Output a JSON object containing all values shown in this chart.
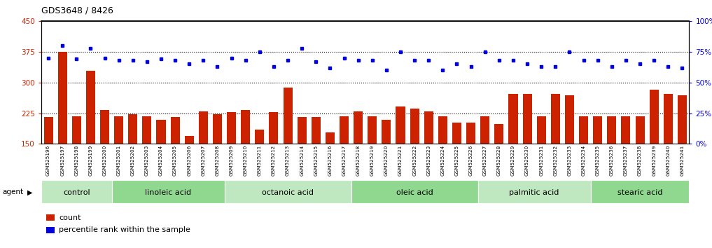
{
  "title": "GDS3648 / 8426",
  "samples": [
    "GSM525196",
    "GSM525197",
    "GSM525198",
    "GSM525199",
    "GSM525200",
    "GSM525201",
    "GSM525202",
    "GSM525203",
    "GSM525204",
    "GSM525205",
    "GSM525206",
    "GSM525207",
    "GSM525208",
    "GSM525209",
    "GSM525210",
    "GSM525211",
    "GSM525212",
    "GSM525213",
    "GSM525214",
    "GSM525215",
    "GSM525216",
    "GSM525217",
    "GSM525218",
    "GSM525219",
    "GSM525220",
    "GSM525221",
    "GSM525222",
    "GSM525223",
    "GSM525224",
    "GSM525225",
    "GSM525226",
    "GSM525227",
    "GSM525228",
    "GSM525229",
    "GSM525230",
    "GSM525231",
    "GSM525232",
    "GSM525233",
    "GSM525234",
    "GSM525235",
    "GSM525236",
    "GSM525237",
    "GSM525238",
    "GSM525239",
    "GSM525240",
    "GSM525241"
  ],
  "counts": [
    215,
    375,
    218,
    328,
    232,
    218,
    222,
    218,
    208,
    215,
    170,
    230,
    222,
    228,
    232,
    185,
    228,
    288,
    215,
    215,
    178,
    218,
    230,
    218,
    208,
    242,
    237,
    230,
    218,
    202,
    202,
    218,
    198,
    272,
    272,
    218,
    272,
    268,
    218,
    218,
    218,
    218,
    218,
    282,
    272,
    268
  ],
  "percentiles": [
    70,
    80,
    69,
    78,
    70,
    68,
    68,
    67,
    69,
    68,
    65,
    68,
    63,
    70,
    68,
    75,
    63,
    68,
    78,
    67,
    62,
    70,
    68,
    68,
    60,
    75,
    68,
    68,
    60,
    65,
    63,
    75,
    68,
    68,
    65,
    63,
    63,
    75,
    68,
    68,
    63,
    68,
    65,
    68,
    63,
    62
  ],
  "groups": [
    {
      "label": "control",
      "start": 0,
      "end": 5
    },
    {
      "label": "linoleic acid",
      "start": 5,
      "end": 13
    },
    {
      "label": "octanoic acid",
      "start": 13,
      "end": 22
    },
    {
      "label": "oleic acid",
      "start": 22,
      "end": 31
    },
    {
      "label": "palmitic acid",
      "start": 31,
      "end": 39
    },
    {
      "label": "stearic acid",
      "start": 39,
      "end": 46
    }
  ],
  "bar_color": "#CC2200",
  "dot_color": "#0000DD",
  "left_ylim": [
    150,
    450
  ],
  "left_yticks": [
    150,
    225,
    300,
    375,
    450
  ],
  "right_ylim": [
    0,
    100
  ],
  "right_yticks": [
    0,
    25,
    50,
    75,
    100
  ],
  "hlines": [
    225,
    300,
    375
  ],
  "group_colors": [
    "#c0e8c0",
    "#90d890"
  ],
  "legend_count_label": "count",
  "legend_pct_label": "percentile rank within the sample"
}
